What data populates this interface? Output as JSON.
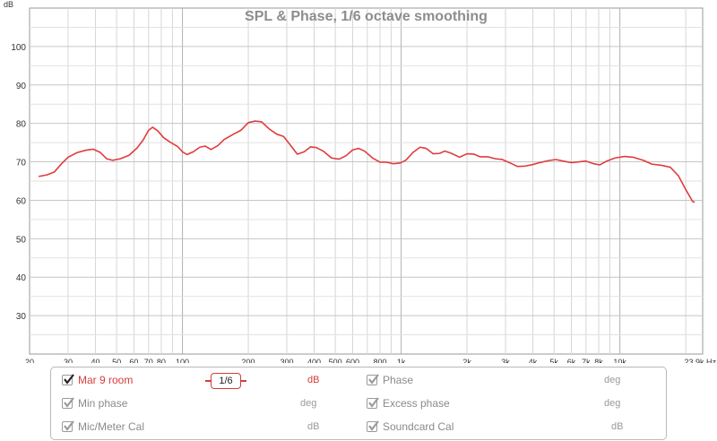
{
  "chart_data": {
    "type": "line",
    "title": "SPL & Phase, 1/6 octave smoothing",
    "ylabel": "dB",
    "xscale": "log",
    "xlim": [
      20,
      23900
    ],
    "ylim": [
      20,
      110
    ],
    "grid": true,
    "y_ticks": [
      30,
      40,
      50,
      60,
      70,
      80,
      90,
      100
    ],
    "x_ticks": [
      {
        "v": 20,
        "label": "20"
      },
      {
        "v": 30,
        "label": "30"
      },
      {
        "v": 40,
        "label": "40"
      },
      {
        "v": 50,
        "label": "50"
      },
      {
        "v": 60,
        "label": "60"
      },
      {
        "v": 70,
        "label": "70"
      },
      {
        "v": 80,
        "label": "80"
      },
      {
        "v": 100,
        "label": "100"
      },
      {
        "v": 200,
        "label": "200"
      },
      {
        "v": 300,
        "label": "300"
      },
      {
        "v": 400,
        "label": "400"
      },
      {
        "v": 500,
        "label": "500"
      },
      {
        "v": 600,
        "label": "600"
      },
      {
        "v": 800,
        "label": "800"
      },
      {
        "v": 1000,
        "label": "1k"
      },
      {
        "v": 2000,
        "label": "2k"
      },
      {
        "v": 3000,
        "label": "3k"
      },
      {
        "v": 4000,
        "label": "4k"
      },
      {
        "v": 5000,
        "label": "5k"
      },
      {
        "v": 6000,
        "label": "6k"
      },
      {
        "v": 7000,
        "label": "7k"
      },
      {
        "v": 8000,
        "label": "8k"
      },
      {
        "v": 10000,
        "label": "10k"
      },
      {
        "v": 23900,
        "label": "23.9k Hz"
      }
    ],
    "series": [
      {
        "name": "Mar 9 room",
        "color": "#e03c3c",
        "points": [
          [
            22,
            66.2
          ],
          [
            24,
            66.6
          ],
          [
            26,
            67.4
          ],
          [
            28,
            69.5
          ],
          [
            30,
            71.2
          ],
          [
            33,
            72.4
          ],
          [
            36,
            73.0
          ],
          [
            39,
            73.3
          ],
          [
            42,
            72.5
          ],
          [
            45,
            70.8
          ],
          [
            48,
            70.4
          ],
          [
            52,
            70.8
          ],
          [
            57,
            71.7
          ],
          [
            62,
            73.6
          ],
          [
            66,
            75.6
          ],
          [
            70,
            78.2
          ],
          [
            73,
            79.0
          ],
          [
            77,
            78.1
          ],
          [
            82,
            76.3
          ],
          [
            88,
            75.1
          ],
          [
            95,
            74.0
          ],
          [
            100,
            72.6
          ],
          [
            105,
            71.9
          ],
          [
            112,
            72.6
          ],
          [
            120,
            73.8
          ],
          [
            127,
            74.1
          ],
          [
            135,
            73.2
          ],
          [
            145,
            74.2
          ],
          [
            155,
            75.8
          ],
          [
            170,
            77.1
          ],
          [
            185,
            78.2
          ],
          [
            200,
            80.2
          ],
          [
            215,
            80.6
          ],
          [
            230,
            80.4
          ],
          [
            250,
            78.5
          ],
          [
            270,
            77.2
          ],
          [
            290,
            76.6
          ],
          [
            310,
            74.5
          ],
          [
            335,
            72.0
          ],
          [
            360,
            72.6
          ],
          [
            385,
            73.9
          ],
          [
            410,
            73.7
          ],
          [
            440,
            72.8
          ],
          [
            480,
            71.0
          ],
          [
            520,
            70.7
          ],
          [
            560,
            71.6
          ],
          [
            600,
            73.1
          ],
          [
            640,
            73.5
          ],
          [
            680,
            72.8
          ],
          [
            740,
            71.0
          ],
          [
            800,
            69.9
          ],
          [
            860,
            69.9
          ],
          [
            920,
            69.5
          ],
          [
            990,
            69.7
          ],
          [
            1050,
            70.4
          ],
          [
            1130,
            72.4
          ],
          [
            1220,
            73.8
          ],
          [
            1300,
            73.5
          ],
          [
            1400,
            72.1
          ],
          [
            1500,
            72.2
          ],
          [
            1580,
            72.8
          ],
          [
            1700,
            72.2
          ],
          [
            1850,
            71.2
          ],
          [
            2000,
            72.1
          ],
          [
            2150,
            72.0
          ],
          [
            2300,
            71.3
          ],
          [
            2500,
            71.3
          ],
          [
            2700,
            70.8
          ],
          [
            2900,
            70.6
          ],
          [
            3150,
            69.7
          ],
          [
            3400,
            68.8
          ],
          [
            3700,
            68.9
          ],
          [
            4000,
            69.3
          ],
          [
            4300,
            69.8
          ],
          [
            4700,
            70.3
          ],
          [
            5100,
            70.6
          ],
          [
            5500,
            70.2
          ],
          [
            6000,
            69.8
          ],
          [
            6500,
            70.0
          ],
          [
            7000,
            70.2
          ],
          [
            7600,
            69.5
          ],
          [
            8100,
            69.2
          ],
          [
            8700,
            70.2
          ],
          [
            9500,
            71.0
          ],
          [
            10500,
            71.4
          ],
          [
            11500,
            71.2
          ],
          [
            12800,
            70.4
          ],
          [
            14000,
            69.4
          ],
          [
            15500,
            69.1
          ],
          [
            17000,
            68.6
          ],
          [
            18500,
            66.4
          ],
          [
            20000,
            62.8
          ],
          [
            21500,
            59.7
          ],
          [
            22000,
            59.5
          ]
        ]
      }
    ]
  },
  "legend": {
    "smoothing_label": "1/6",
    "items": [
      {
        "label": "Mar 9 room",
        "unit": "dB",
        "checked": true,
        "active": true
      },
      {
        "label": "Phase",
        "unit": "deg",
        "checked": true,
        "active": false
      },
      {
        "label": "Min phase",
        "unit": "deg",
        "checked": true,
        "active": false
      },
      {
        "label": "Excess phase",
        "unit": "deg",
        "checked": true,
        "active": false
      },
      {
        "label": "Mic/Meter Cal",
        "unit": "dB",
        "checked": true,
        "active": false
      },
      {
        "label": "Soundcard Cal",
        "unit": "dB",
        "checked": true,
        "active": false
      }
    ]
  }
}
